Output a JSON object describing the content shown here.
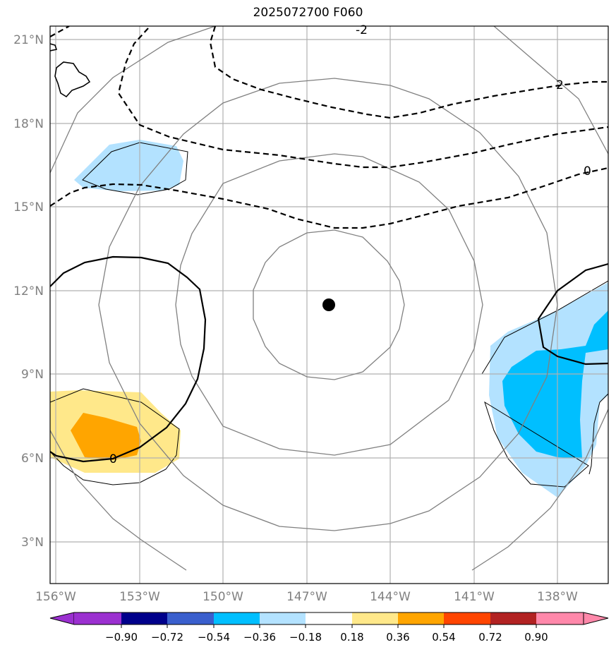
{
  "title": "2025072700 F060",
  "lat_labels": [
    "21°N",
    "18°N",
    "15°N",
    "12°N",
    "9°N",
    "6°N",
    "3°N"
  ],
  "lon_labels": [
    "156°W",
    "153°W",
    "150°W",
    "147°W",
    "144°W",
    "141°W",
    "138°W"
  ],
  "contour_labels": {
    "dashed_top": "-2",
    "dashed_right_upper": "2",
    "dashed_right_lower": "0",
    "solid_bottom_left": "0"
  },
  "colorbar": {
    "ticks": [
      "−0.90",
      "−0.72",
      "−0.54",
      "−0.36",
      "−0.18",
      "0.18",
      "0.36",
      "0.54",
      "0.72",
      "0.90"
    ],
    "colors": [
      "#9b30d0",
      "#00008b",
      "#3a5fcd",
      "#00bfff",
      "#b3e2ff",
      "#ffffff",
      "#ffe88a",
      "#ffa500",
      "#ff4500",
      "#b22222",
      "#ff88aa"
    ]
  },
  "storm_center": {
    "lat": 11.5,
    "lon": -146.2
  },
  "colors": {
    "grid": "#b0b0b0",
    "range_rings": "#808080",
    "light_blue": "#b3e2ff",
    "blue": "#00bfff",
    "light_yellow": "#ffe88a",
    "orange": "#ffa500"
  }
}
